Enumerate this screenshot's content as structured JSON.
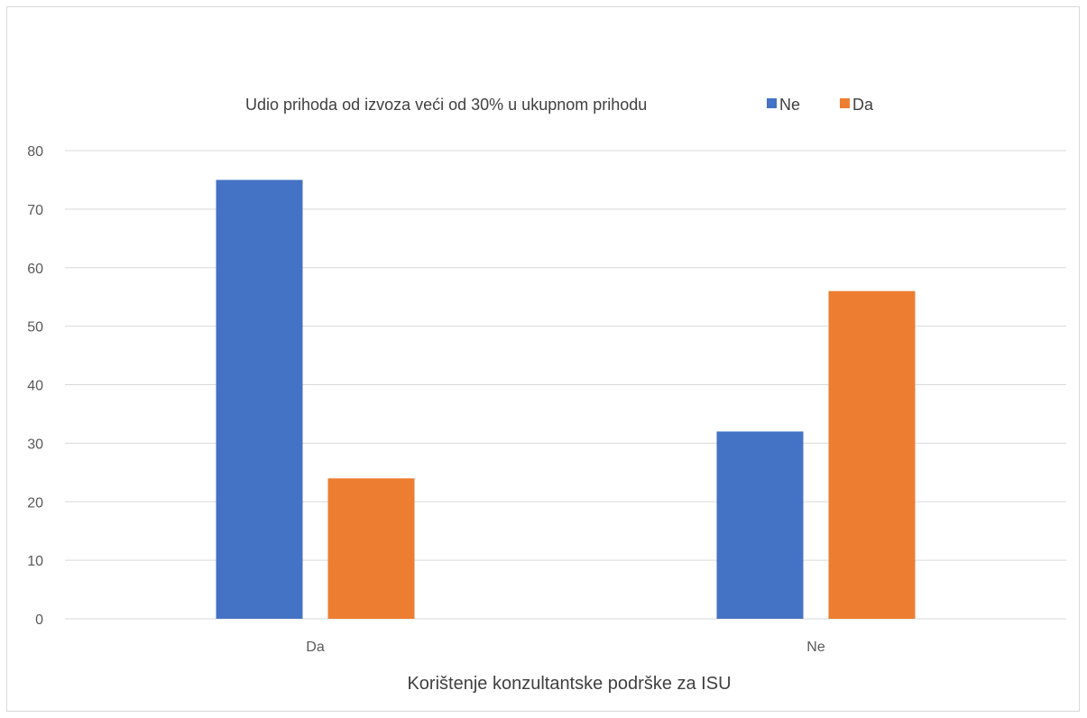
{
  "chart_data": {
    "type": "bar",
    "title": "",
    "legend_title": "Udio prihoda od izvoza veći od 30% u ukupnom prihodu",
    "legend_position": "top",
    "xlabel": "Korištenje konzultantske podrške za ISU",
    "ylabel": "",
    "categories": [
      "Da",
      "Ne"
    ],
    "series": [
      {
        "name": "Ne",
        "color": "#4472C4",
        "values": [
          75,
          32
        ]
      },
      {
        "name": "Da",
        "color": "#ED7D31",
        "values": [
          24,
          56
        ]
      }
    ],
    "ylim": [
      0,
      80
    ],
    "yticks": [
      0,
      10,
      20,
      30,
      40,
      50,
      60,
      70,
      80
    ],
    "grid": true
  }
}
